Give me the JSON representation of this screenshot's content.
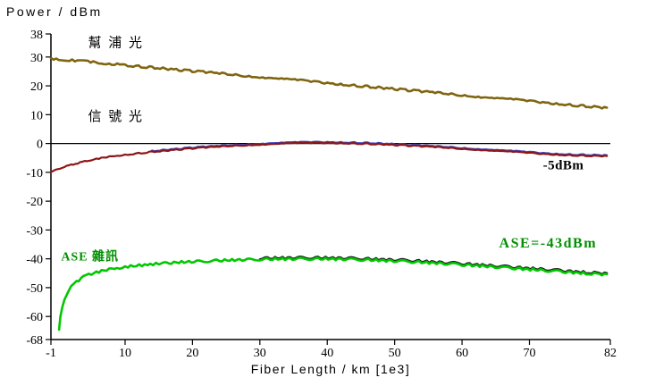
{
  "page": {
    "background": "#ffffff"
  },
  "chart_data": {
    "type": "line",
    "title": "Power / dBm",
    "xlabel": "Fiber Length / km [1e3]",
    "ylabel": "Power / dBm",
    "xlim": [
      -1,
      82
    ],
    "ylim": [
      -68,
      38
    ],
    "grid": false,
    "legend": "none",
    "zero_line": 0,
    "x_tick_values": [
      -1,
      10,
      20,
      30,
      40,
      50,
      60,
      70,
      82
    ],
    "x_tick_labels": [
      "-1",
      "10",
      "20",
      "30",
      "40",
      "50",
      "60",
      "70",
      "82"
    ],
    "y_tick_values": [
      38,
      30,
      20,
      10,
      0,
      -10,
      -20,
      -30,
      -40,
      -50,
      -60,
      -68
    ],
    "y_tick_labels": [
      "38",
      "30",
      "20",
      "10",
      "0",
      "-10",
      "-20",
      "-30",
      "-40",
      "-50",
      "-60",
      "-68"
    ],
    "series": [
      {
        "key": "pump",
        "name": "幫浦光",
        "color": "#7f6510",
        "width": 2.6,
        "noise": 0.35,
        "points": [
          [
            -1,
            29.5
          ],
          [
            10,
            27.2
          ],
          [
            20,
            25.1
          ],
          [
            30,
            23.1
          ],
          [
            40,
            21.0
          ],
          [
            50,
            18.9
          ],
          [
            60,
            16.8
          ],
          [
            70,
            14.7
          ],
          [
            80,
            12.6
          ],
          [
            81.5,
            12.3
          ]
        ]
      },
      {
        "key": "signal",
        "name": "信號光",
        "color": "#8c1616",
        "overlay_color": "#4444bb",
        "overlay_dy": 0.35,
        "overlay_from": 14,
        "width": 2.2,
        "noise": 0.18,
        "points": [
          [
            -1,
            -10
          ],
          [
            0,
            -8.9
          ],
          [
            1,
            -8.1
          ],
          [
            2,
            -7.4
          ],
          [
            3,
            -6.8
          ],
          [
            4,
            -6.2
          ],
          [
            5,
            -5.7
          ],
          [
            6.5,
            -5.0
          ],
          [
            8,
            -4.5
          ],
          [
            10,
            -3.9
          ],
          [
            12,
            -3.4
          ],
          [
            14,
            -2.9
          ],
          [
            16,
            -2.5
          ],
          [
            18,
            -2.1
          ],
          [
            20,
            -1.7
          ],
          [
            22,
            -1.4
          ],
          [
            24,
            -1.1
          ],
          [
            26,
            -0.8
          ],
          [
            28,
            -0.55
          ],
          [
            30,
            -0.35
          ],
          [
            32,
            -0.15
          ],
          [
            34,
            0.0
          ],
          [
            36,
            0.1
          ],
          [
            38,
            0.18
          ],
          [
            40,
            0.2
          ],
          [
            42,
            0.15
          ],
          [
            44,
            0.05
          ],
          [
            46,
            -0.1
          ],
          [
            48,
            -0.3
          ],
          [
            50,
            -0.5
          ],
          [
            52,
            -0.75
          ],
          [
            54,
            -1.0
          ],
          [
            56,
            -1.25
          ],
          [
            58,
            -1.5
          ],
          [
            60,
            -1.8
          ],
          [
            62,
            -2.1
          ],
          [
            64,
            -2.4
          ],
          [
            66,
            -2.7
          ],
          [
            68,
            -3.0
          ],
          [
            70,
            -3.3
          ],
          [
            72,
            -3.6
          ],
          [
            74,
            -3.85
          ],
          [
            76,
            -4.05
          ],
          [
            78,
            -4.2
          ],
          [
            80,
            -4.35
          ],
          [
            81.5,
            -4.4
          ]
        ]
      },
      {
        "key": "ase",
        "name": "ASE 雜訊",
        "color": "#00c800",
        "overlay_color": "#1a1a1a",
        "overlay_dy": 0.4,
        "overlay_from": 30,
        "width": 2.6,
        "noise": 0.4,
        "points": [
          [
            0.2,
            -64.5
          ],
          [
            0.4,
            -60
          ],
          [
            0.7,
            -56.5
          ],
          [
            1,
            -54
          ],
          [
            1.5,
            -51.5
          ],
          [
            2,
            -49.8
          ],
          [
            2.8,
            -47.9
          ],
          [
            3.8,
            -46.4
          ],
          [
            5,
            -45.2
          ],
          [
            6.5,
            -44.2
          ],
          [
            8,
            -43.5
          ],
          [
            10,
            -42.8
          ],
          [
            12.5,
            -42.2
          ],
          [
            15,
            -41.7
          ],
          [
            18,
            -41.2
          ],
          [
            21,
            -40.9
          ],
          [
            24,
            -40.6
          ],
          [
            27,
            -40.35
          ],
          [
            30,
            -40.2
          ],
          [
            33,
            -40.05
          ],
          [
            36,
            -40.0
          ],
          [
            39,
            -40.0
          ],
          [
            42,
            -40.1
          ],
          [
            45,
            -40.3
          ],
          [
            48,
            -40.55
          ],
          [
            51,
            -40.85
          ],
          [
            54,
            -41.2
          ],
          [
            57,
            -41.6
          ],
          [
            60,
            -42.05
          ],
          [
            63,
            -42.5
          ],
          [
            66,
            -43.0
          ],
          [
            69,
            -43.5
          ],
          [
            72,
            -44.0
          ],
          [
            75,
            -44.5
          ],
          [
            78,
            -45.0
          ],
          [
            80,
            -45.3
          ],
          [
            81.5,
            -45.5
          ]
        ]
      }
    ],
    "annotations": [
      {
        "key": "pump-label",
        "text": "幫 浦 光",
        "x": 4.5,
        "y": 33.5,
        "color": "#000000",
        "bold": false,
        "size": 15,
        "spacing": 2
      },
      {
        "key": "signal-label",
        "text": "信 號 光",
        "x": 4.5,
        "y": 8,
        "color": "#000000",
        "bold": false,
        "size": 15,
        "spacing": 2
      },
      {
        "key": "signal-power-label",
        "text": "-5dBm",
        "x": 72,
        "y": -9,
        "color": "#000000",
        "bold": true,
        "size": 15,
        "spacing": 0.5
      },
      {
        "key": "ase-power-label",
        "text": "ASE=-43dBm",
        "x": 65.5,
        "y": -36,
        "color": "#009100",
        "bold": true,
        "size": 16,
        "spacing": 1.5
      },
      {
        "key": "ase-label",
        "text": "ASE 雜訊",
        "x": 0.5,
        "y": -40.5,
        "color": "#009100",
        "bold": true,
        "size": 14,
        "spacing": 1
      }
    ]
  }
}
